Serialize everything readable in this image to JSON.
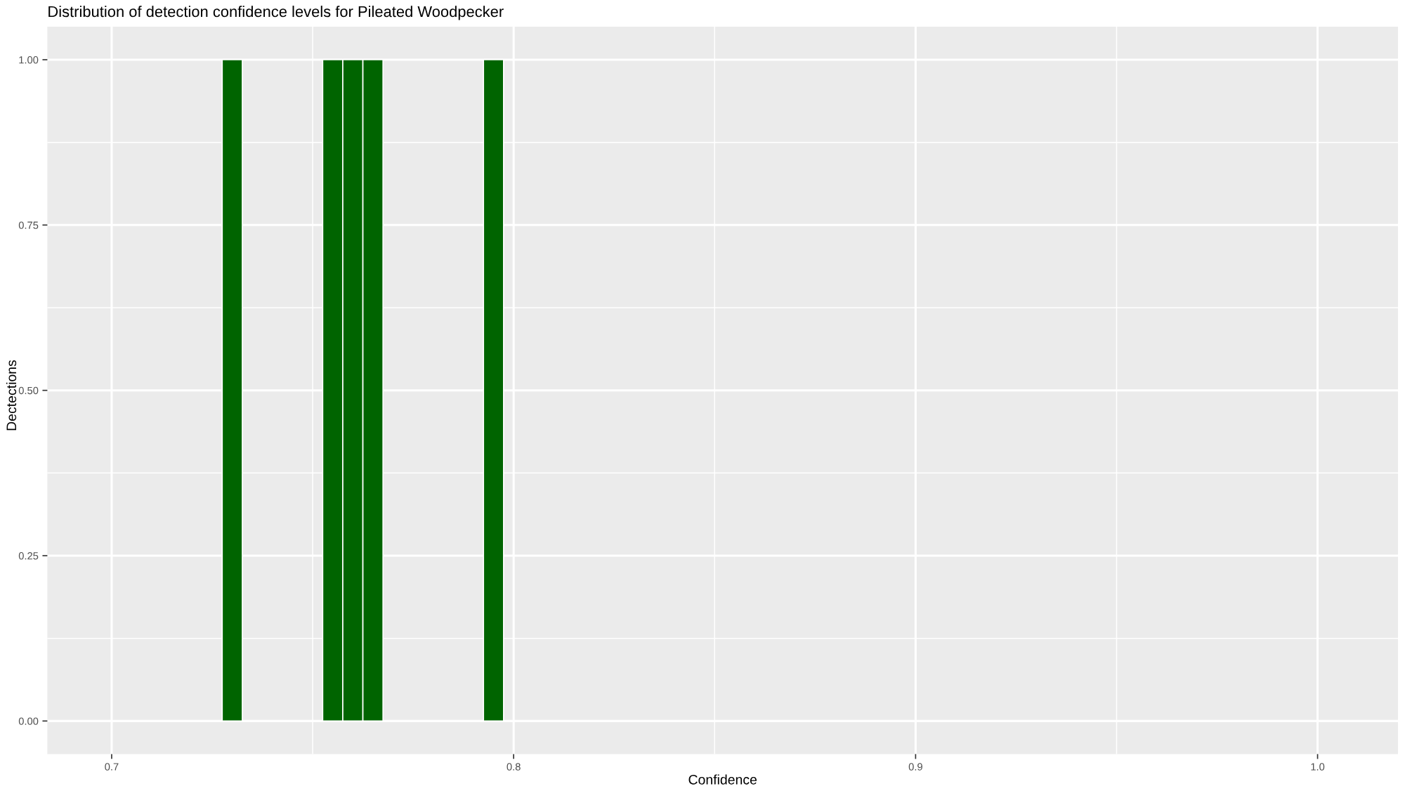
{
  "chart_data": {
    "type": "histogram",
    "title": "Distribution of detection confidence levels for Pileated Woodpecker",
    "xlabel": "Confidence",
    "ylabel": "Dectections",
    "bins": [
      0.7275,
      0.7325,
      0.7375,
      0.7425,
      0.7475,
      0.7525,
      0.7575,
      0.7625,
      0.7675,
      0.7725,
      0.7775,
      0.7825,
      0.7875,
      0.7925,
      0.7975
    ],
    "values": [
      1,
      0,
      0,
      0,
      0,
      1,
      1,
      1,
      0,
      0,
      0,
      0,
      0,
      1
    ],
    "color": "#006400",
    "xlim": [
      0.684,
      1.02
    ],
    "xticks": [
      {
        "value": 0.7,
        "label": "0.7"
      },
      {
        "value": 0.8,
        "label": "0.8"
      },
      {
        "value": 0.9,
        "label": "0.9"
      },
      {
        "value": 1.0,
        "label": "1.0"
      }
    ],
    "ylim": [
      -0.05,
      1.05
    ],
    "yticks": [
      {
        "value": 0,
        "label": "0.00"
      },
      {
        "value": 0.25,
        "label": "0.25"
      },
      {
        "value": 0.5,
        "label": "0.50"
      },
      {
        "value": 0.75,
        "label": "0.75"
      },
      {
        "value": 1,
        "label": "1.00"
      }
    ],
    "grid": true
  }
}
